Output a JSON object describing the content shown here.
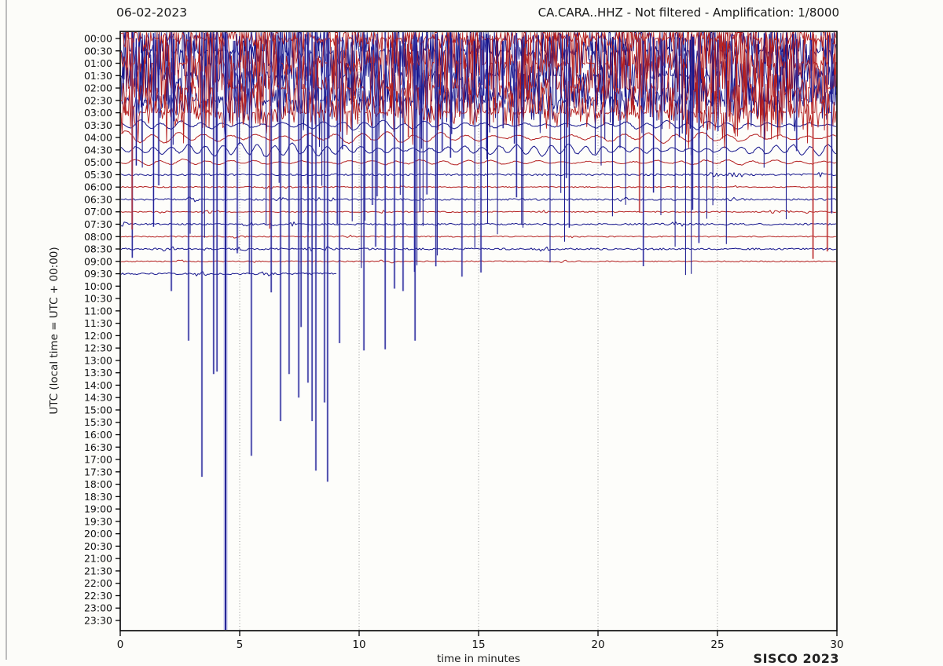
{
  "header": {
    "date": "06-02-2023",
    "title": "CA.CARA..HHZ - Not filtered - Amplification: 1/8000"
  },
  "chart_data": {
    "type": "helicorder-dayplot",
    "station_code": "CA.CARA..HHZ",
    "date": "06-02-2023",
    "filter_status": "Not filtered",
    "amplification": "1/8000",
    "xlabel": "time in minutes",
    "ylabel": "UTC (local time = UTC + 00:00)",
    "footer": "SISCO 2023",
    "x_range_minutes": [
      0,
      30
    ],
    "x_ticks": [
      0,
      5,
      10,
      15,
      20,
      25,
      30
    ],
    "x_gridlines_minutes": [
      5,
      10,
      15,
      20,
      25
    ],
    "grid_style": "dotted-vertical",
    "colors": {
      "trace_red": "#b42020",
      "trace_blue": "#15158c",
      "spike_halo_blue": "rgba(110,110,215,0.38)",
      "spike_halo_red": "rgba(215,110,110,0.35)",
      "gridline": "#8a8a8a",
      "axis": "#000000"
    },
    "rows": [
      {
        "label": "00:00",
        "color": "red",
        "activity": "saturated",
        "end_minute": 30
      },
      {
        "label": "00:30",
        "color": "blue",
        "activity": "saturated",
        "end_minute": 30
      },
      {
        "label": "01:00",
        "color": "red",
        "activity": "saturated",
        "end_minute": 30
      },
      {
        "label": "01:30",
        "color": "blue",
        "activity": "saturated",
        "end_minute": 30
      },
      {
        "label": "02:00",
        "color": "red",
        "activity": "saturated",
        "end_minute": 30
      },
      {
        "label": "02:30",
        "color": "blue",
        "activity": "saturated",
        "end_minute": 30
      },
      {
        "label": "03:00",
        "color": "red",
        "activity": "saturated",
        "end_minute": 30
      },
      {
        "label": "03:30",
        "color": "blue",
        "activity": "wavy",
        "end_minute": 30
      },
      {
        "label": "04:00",
        "color": "red",
        "activity": "wavy",
        "end_minute": 30
      },
      {
        "label": "04:30",
        "color": "blue",
        "activity": "wavy",
        "end_minute": 30
      },
      {
        "label": "05:00",
        "color": "red",
        "activity": "wavy-small",
        "end_minute": 30
      },
      {
        "label": "05:30",
        "color": "blue",
        "activity": "flat",
        "end_minute": 30
      },
      {
        "label": "06:00",
        "color": "red",
        "activity": "flat",
        "end_minute": 30
      },
      {
        "label": "06:30",
        "color": "blue",
        "activity": "flat",
        "end_minute": 30
      },
      {
        "label": "07:00",
        "color": "red",
        "activity": "flat",
        "end_minute": 30
      },
      {
        "label": "07:30",
        "color": "blue",
        "activity": "flat",
        "end_minute": 30
      },
      {
        "label": "08:00",
        "color": "red",
        "activity": "flat",
        "end_minute": 30
      },
      {
        "label": "08:30",
        "color": "blue",
        "activity": "flat",
        "end_minute": 30
      },
      {
        "label": "09:00",
        "color": "red",
        "activity": "flat",
        "end_minute": 30
      },
      {
        "label": "09:30",
        "color": "blue",
        "activity": "flat",
        "end_minute": 9.05
      },
      {
        "label": "10:00",
        "color": "red",
        "activity": "none",
        "end_minute": 0
      },
      {
        "label": "10:30",
        "color": "blue",
        "activity": "none",
        "end_minute": 0
      },
      {
        "label": "11:00",
        "color": "red",
        "activity": "none",
        "end_minute": 0
      },
      {
        "label": "11:30",
        "color": "blue",
        "activity": "none",
        "end_minute": 0
      },
      {
        "label": "12:00",
        "color": "red",
        "activity": "none",
        "end_minute": 0
      },
      {
        "label": "12:30",
        "color": "blue",
        "activity": "none",
        "end_minute": 0
      },
      {
        "label": "13:00",
        "color": "red",
        "activity": "none",
        "end_minute": 0
      },
      {
        "label": "13:30",
        "color": "blue",
        "activity": "none",
        "end_minute": 0
      },
      {
        "label": "14:00",
        "color": "red",
        "activity": "none",
        "end_minute": 0
      },
      {
        "label": "14:30",
        "color": "blue",
        "activity": "none",
        "end_minute": 0
      },
      {
        "label": "15:00",
        "color": "red",
        "activity": "none",
        "end_minute": 0
      },
      {
        "label": "15:30",
        "color": "blue",
        "activity": "none",
        "end_minute": 0
      },
      {
        "label": "16:00",
        "color": "red",
        "activity": "none",
        "end_minute": 0
      },
      {
        "label": "16:30",
        "color": "blue",
        "activity": "none",
        "end_minute": 0
      },
      {
        "label": "17:00",
        "color": "red",
        "activity": "none",
        "end_minute": 0
      },
      {
        "label": "17:30",
        "color": "blue",
        "activity": "none",
        "end_minute": 0
      },
      {
        "label": "18:00",
        "color": "red",
        "activity": "none",
        "end_minute": 0
      },
      {
        "label": "18:30",
        "color": "blue",
        "activity": "none",
        "end_minute": 0
      },
      {
        "label": "19:00",
        "color": "red",
        "activity": "none",
        "end_minute": 0
      },
      {
        "label": "19:30",
        "color": "blue",
        "activity": "none",
        "end_minute": 0
      },
      {
        "label": "20:00",
        "color": "red",
        "activity": "none",
        "end_minute": 0
      },
      {
        "label": "20:30",
        "color": "blue",
        "activity": "none",
        "end_minute": 0
      },
      {
        "label": "21:00",
        "color": "red",
        "activity": "none",
        "end_minute": 0
      },
      {
        "label": "21:30",
        "color": "blue",
        "activity": "none",
        "end_minute": 0
      },
      {
        "label": "22:00",
        "color": "red",
        "activity": "none",
        "end_minute": 0
      },
      {
        "label": "22:30",
        "color": "blue",
        "activity": "none",
        "end_minute": 0
      },
      {
        "label": "23:00",
        "color": "red",
        "activity": "none",
        "end_minute": 0
      },
      {
        "label": "23:30",
        "color": "blue",
        "activity": "none",
        "end_minute": 0
      }
    ],
    "overflow_spikes_deep": [
      {
        "minute": 2.14,
        "end_row": 20.4,
        "color": "blue",
        "thick": false
      },
      {
        "minute": 2.86,
        "end_row": 24.4,
        "color": "blue",
        "thick": false
      },
      {
        "minute": 3.42,
        "end_row": 35.4,
        "color": "blue",
        "thick": false
      },
      {
        "minute": 3.91,
        "end_row": 27.1,
        "color": "blue",
        "thick": false
      },
      {
        "minute": 4.05,
        "end_row": 26.9,
        "color": "blue",
        "thick": false
      },
      {
        "minute": 4.41,
        "end_row": 47.8,
        "color": "blue",
        "thick": true
      },
      {
        "minute": 5.49,
        "end_row": 33.7,
        "color": "blue",
        "thick": false
      },
      {
        "minute": 6.32,
        "end_row": 20.5,
        "color": "blue",
        "thick": false
      },
      {
        "minute": 6.71,
        "end_row": 30.9,
        "color": "blue",
        "thick": false
      },
      {
        "minute": 7.07,
        "end_row": 27.1,
        "color": "blue",
        "thick": false
      },
      {
        "minute": 7.47,
        "end_row": 29.0,
        "color": "blue",
        "thick": false
      },
      {
        "minute": 7.57,
        "end_row": 23.3,
        "color": "blue",
        "thick": false
      },
      {
        "minute": 7.86,
        "end_row": 27.8,
        "color": "blue",
        "thick": false
      },
      {
        "minute": 8.03,
        "end_row": 30.9,
        "color": "blue",
        "thick": false
      },
      {
        "minute": 8.19,
        "end_row": 34.9,
        "color": "blue",
        "thick": false
      },
      {
        "minute": 8.55,
        "end_row": 29.4,
        "color": "blue",
        "thick": false
      },
      {
        "minute": 8.68,
        "end_row": 35.8,
        "color": "blue",
        "thick": false
      },
      {
        "minute": 9.18,
        "end_row": 24.6,
        "color": "blue",
        "thick": false
      },
      {
        "minute": 10.2,
        "end_row": 25.2,
        "color": "blue",
        "thick": false
      },
      {
        "minute": 11.09,
        "end_row": 25.1,
        "color": "blue",
        "thick": false
      },
      {
        "minute": 11.48,
        "end_row": 20.2,
        "color": "blue",
        "thick": false
      },
      {
        "minute": 11.84,
        "end_row": 20.4,
        "color": "blue",
        "thick": false
      },
      {
        "minute": 12.34,
        "end_row": 24.4,
        "color": "blue",
        "thick": false
      },
      {
        "minute": 15.1,
        "end_row": 18.9,
        "color": "blue",
        "thick": false
      },
      {
        "minute": 29.0,
        "end_row": 17.8,
        "color": "red",
        "thick": false
      },
      {
        "minute": 29.6,
        "end_row": 17.2,
        "color": "red",
        "thick": false
      }
    ],
    "band_spikes": {
      "count": 130,
      "seed": 20230602,
      "min_end_row": 3.5,
      "max_end_row": 19.3
    }
  }
}
